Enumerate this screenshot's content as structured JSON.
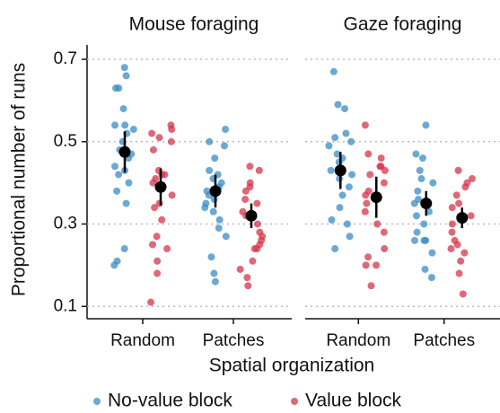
{
  "chart_data": {
    "type": "strip",
    "y_label": "Proportional number of runs",
    "x_label": "Spatial organization",
    "ylim": [
      0.07,
      0.735
    ],
    "yticks": [
      0.1,
      0.3,
      0.5,
      0.7
    ],
    "grid": true,
    "legend": "bottom",
    "categories": [
      "Random",
      "Patches"
    ],
    "series": [
      {
        "name": "No-value block",
        "color": "#3a8cc4"
      },
      {
        "name": "Value block",
        "color": "#d4364b"
      }
    ],
    "panels": [
      {
        "title": "Mouse foraging",
        "groups": [
          [
            {
              "values": [
                0.68,
                0.66,
                0.63,
                0.63,
                0.58,
                0.54,
                0.54,
                0.53,
                0.52,
                0.5,
                0.48,
                0.47,
                0.46,
                0.44,
                0.43,
                0.42,
                0.4,
                0.38,
                0.35,
                0.24,
                0.21,
                0.2
              ],
              "mean": 0.475,
              "error": 0.05
            },
            {
              "values": [
                0.54,
                0.53,
                0.52,
                0.51,
                0.5,
                0.48,
                0.43,
                0.42,
                0.42,
                0.41,
                0.4,
                0.37,
                0.35,
                0.34,
                0.31,
                0.27,
                0.25,
                0.24,
                0.21,
                0.18,
                0.11
              ],
              "mean": 0.39,
              "error": 0.045
            }
          ],
          [
            {
              "values": [
                0.53,
                0.5,
                0.49,
                0.46,
                0.43,
                0.42,
                0.41,
                0.4,
                0.39,
                0.38,
                0.37,
                0.36,
                0.35,
                0.34,
                0.33,
                0.31,
                0.29,
                0.27,
                0.22,
                0.18,
                0.16
              ],
              "mean": 0.38,
              "error": 0.04
            },
            {
              "values": [
                0.44,
                0.43,
                0.4,
                0.39,
                0.38,
                0.36,
                0.35,
                0.33,
                0.32,
                0.3,
                0.28,
                0.27,
                0.26,
                0.25,
                0.24,
                0.24,
                0.21,
                0.19,
                0.17,
                0.15
              ],
              "mean": 0.32,
              "error": 0.03
            }
          ]
        ]
      },
      {
        "title": "Gaze foraging",
        "groups": [
          [
            {
              "values": [
                0.67,
                0.59,
                0.58,
                0.52,
                0.51,
                0.5,
                0.49,
                0.47,
                0.46,
                0.45,
                0.43,
                0.42,
                0.41,
                0.39,
                0.37,
                0.34,
                0.31,
                0.3,
                0.27,
                0.24
              ],
              "mean": 0.43,
              "error": 0.045
            },
            {
              "values": [
                0.54,
                0.47,
                0.46,
                0.44,
                0.44,
                0.43,
                0.42,
                0.4,
                0.38,
                0.37,
                0.35,
                0.33,
                0.3,
                0.28,
                0.24,
                0.22,
                0.2,
                0.2,
                0.15
              ],
              "mean": 0.365,
              "error": 0.05
            }
          ],
          [
            {
              "values": [
                0.54,
                0.47,
                0.46,
                0.43,
                0.41,
                0.4,
                0.38,
                0.36,
                0.35,
                0.33,
                0.32,
                0.3,
                0.28,
                0.26,
                0.26,
                0.26,
                0.23,
                0.19,
                0.17
              ],
              "mean": 0.35,
              "error": 0.03
            },
            {
              "values": [
                0.43,
                0.41,
                0.4,
                0.39,
                0.37,
                0.35,
                0.34,
                0.32,
                0.3,
                0.28,
                0.26,
                0.25,
                0.24,
                0.23,
                0.21,
                0.18,
                0.13
              ],
              "mean": 0.315,
              "error": 0.025
            }
          ]
        ]
      }
    ]
  }
}
